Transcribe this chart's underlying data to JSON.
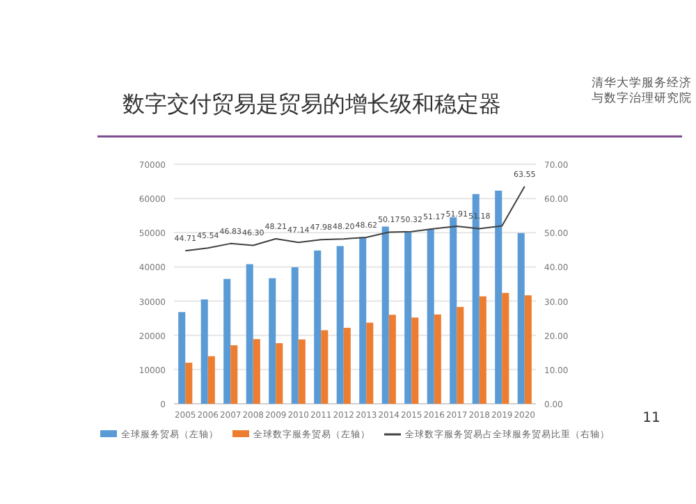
{
  "chart_data": {
    "type": "bar",
    "title": "数字交付贸易是贸易的增长级和稳定器",
    "categories": [
      "2005",
      "2006",
      "2007",
      "2008",
      "2009",
      "2010",
      "2011",
      "2012",
      "2013",
      "2014",
      "2015",
      "2016",
      "2017",
      "2018",
      "2019",
      "2020"
    ],
    "series": [
      {
        "name": "全球服务贸易（左轴）",
        "color": "#5b9bd5",
        "values": [
          26800,
          30500,
          36500,
          40800,
          36700,
          39900,
          44800,
          46100,
          48700,
          51800,
          50100,
          51000,
          54500,
          61300,
          62300,
          49900
        ]
      },
      {
        "name": "全球数字服务贸易（左轴）",
        "color": "#ed7d31",
        "values": [
          12000,
          13900,
          17100,
          18900,
          17700,
          18800,
          21500,
          22200,
          23700,
          26000,
          25200,
          26100,
          28300,
          31400,
          32400,
          31700
        ]
      },
      {
        "name": "全球数字服务贸易占全球服务贸易比重（右轴）",
        "type": "line",
        "axis": "y2",
        "color": "#404040",
        "marker": "none",
        "values": [
          44.71,
          45.54,
          46.83,
          46.3,
          48.21,
          47.14,
          47.98,
          48.2,
          48.62,
          50.17,
          50.32,
          51.17,
          51.91,
          51.18,
          52,
          63.55
        ],
        "value_labels": [
          "44.71",
          "45.54",
          "46.83",
          "46.30",
          "48.21",
          "47.14",
          "47.98",
          "48.20",
          "48.62",
          "50.17",
          "50.32",
          "51.17",
          "51.91",
          "51.18",
          null,
          "63.55"
        ]
      }
    ],
    "ylim": [
      0,
      70000
    ],
    "yticks": [
      0,
      10000,
      20000,
      30000,
      40000,
      50000,
      60000,
      70000
    ],
    "y2lim": [
      0,
      70
    ],
    "y2ticks": [
      {
        "value": 0,
        "label": "0.00"
      },
      {
        "value": 10,
        "label": "10.00"
      },
      {
        "value": 20,
        "label": "20.00"
      },
      {
        "value": 30,
        "label": "30.00"
      },
      {
        "value": 40,
        "label": "40.00"
      },
      {
        "value": 50,
        "label": "50.00"
      },
      {
        "value": 60,
        "label": "60.00"
      },
      {
        "value": 70,
        "label": "70.00"
      }
    ],
    "grid": "y",
    "legend": "bottom",
    "annotations": [
      "清华大学服务经济与数字治理研究院",
      "11"
    ]
  }
}
